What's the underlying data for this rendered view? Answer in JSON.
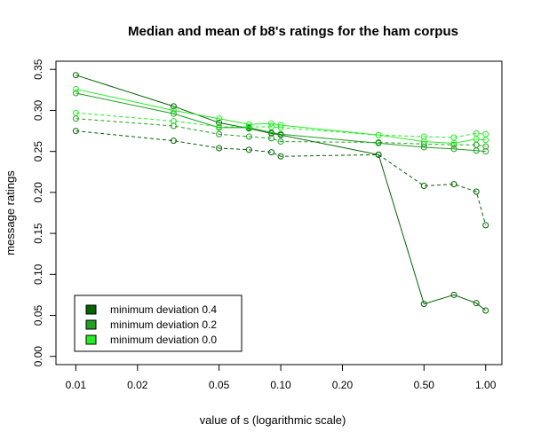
{
  "chart_data": {
    "type": "line",
    "title": "Median and mean of b8's ratings for the ham corpus",
    "xlabel": "value of s (logarithmic scale)",
    "ylabel": "message ratings",
    "xscale": "log",
    "xlim": [
      0.008,
      1.2
    ],
    "ylim": [
      -0.01,
      0.36
    ],
    "x_ticks": [
      0.01,
      0.02,
      0.05,
      0.1,
      0.2,
      0.5,
      1.0
    ],
    "x_tick_labels": [
      "0.01",
      "0.02",
      "0.05",
      "0.10",
      "0.20",
      "0.50",
      "1.00"
    ],
    "y_ticks": [
      0.0,
      0.05,
      0.1,
      0.15,
      0.2,
      0.25,
      0.3,
      0.35
    ],
    "y_tick_labels": [
      "0.00",
      "0.05",
      "0.10",
      "0.15",
      "0.20",
      "0.25",
      "0.30",
      "0.35"
    ],
    "grid": false,
    "legend_position": "bottom-left",
    "legend": [
      {
        "label": "minimum deviation 0.4",
        "color": "#006400"
      },
      {
        "label": "minimum deviation 0.2",
        "color": "#1fa01f"
      },
      {
        "label": "minimum deviation 0.0",
        "color": "#22ee22"
      }
    ],
    "x": [
      0.01,
      0.03,
      0.05,
      0.07,
      0.09,
      0.1,
      0.3,
      0.5,
      0.7,
      0.9,
      1.0
    ],
    "series": [
      {
        "group": 0,
        "style": "solid",
        "color": "#006400",
        "values": [
          0.343,
          0.305,
          0.285,
          0.278,
          0.272,
          0.27,
          0.246,
          0.064,
          0.075,
          0.065,
          0.056
        ]
      },
      {
        "group": 0,
        "style": "dashed",
        "color": "#006400",
        "values": [
          0.275,
          0.263,
          0.254,
          0.252,
          0.249,
          0.244,
          0.246,
          0.208,
          0.21,
          0.201,
          0.16
        ]
      },
      {
        "group": 1,
        "style": "solid",
        "color": "#1fa01f",
        "values": [
          0.321,
          0.296,
          0.279,
          0.279,
          0.273,
          0.271,
          0.26,
          0.255,
          0.253,
          0.251,
          0.25
        ]
      },
      {
        "group": 1,
        "style": "dashed",
        "color": "#1fa01f",
        "values": [
          0.29,
          0.281,
          0.271,
          0.268,
          0.266,
          0.262,
          0.261,
          0.259,
          0.258,
          0.258,
          0.256
        ]
      },
      {
        "group": 2,
        "style": "solid",
        "color": "#22ee22",
        "values": [
          0.326,
          0.3,
          0.29,
          0.283,
          0.284,
          0.282,
          0.27,
          0.262,
          0.26,
          0.265,
          0.264
        ]
      },
      {
        "group": 2,
        "style": "dashed",
        "color": "#22ee22",
        "values": [
          0.297,
          0.287,
          0.28,
          0.28,
          0.28,
          0.279,
          0.27,
          0.268,
          0.267,
          0.272,
          0.271
        ]
      }
    ]
  }
}
